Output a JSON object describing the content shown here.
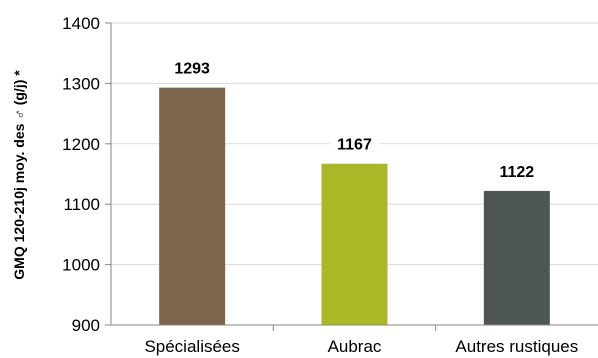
{
  "chart_data": {
    "type": "bar",
    "categories": [
      "Spécialisées",
      "Aubrac",
      "Autres rustiques"
    ],
    "values": [
      1293,
      1167,
      1122
    ],
    "data_labels": [
      "1293",
      "1167",
      "1122"
    ],
    "bar_colors": [
      "#7d654e",
      "#aab827",
      "#4e5653"
    ],
    "title": "",
    "xlabel": "",
    "ylabel": "GMQ 120-210j moy. des ♂ (g/j) *",
    "ylim": [
      900,
      1400
    ],
    "yticks": [
      900,
      1000,
      1100,
      1200,
      1300,
      1400
    ],
    "ytick_labels": [
      "900",
      "1000",
      "1100",
      "1200",
      "1300",
      "1400"
    ],
    "grid": true,
    "legend": "none",
    "grid_color": "#d9d9d9",
    "axis_color": "#868686"
  }
}
